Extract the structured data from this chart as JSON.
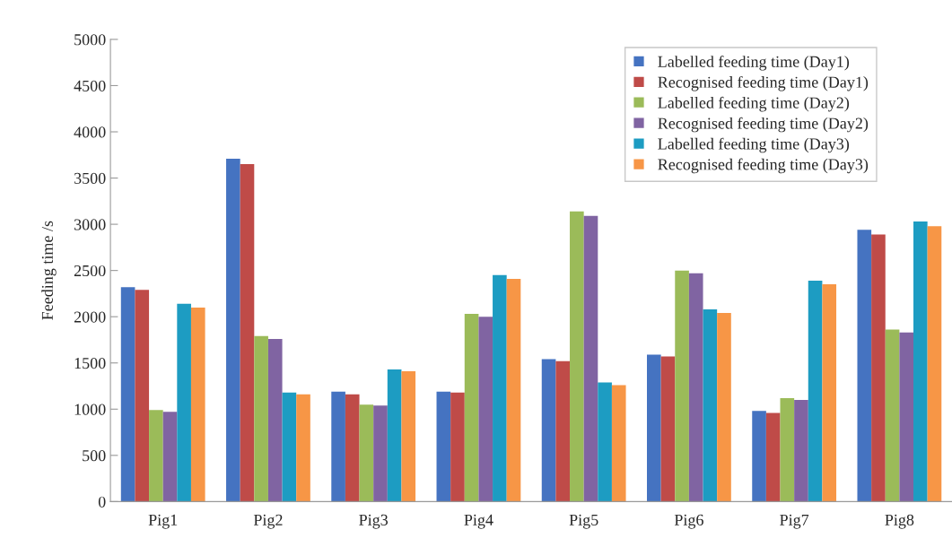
{
  "chart_data": {
    "type": "bar",
    "ylabel": "Feeding time /s",
    "categories": [
      "Pig1",
      "Pig2",
      "Pig3",
      "Pig4",
      "Pig5",
      "Pig6",
      "Pig7",
      "Pig8"
    ],
    "series": [
      {
        "name": "Labelled feeding time (Day1)",
        "color": "#4573c1",
        "values": [
          2320,
          3710,
          1190,
          1190,
          1540,
          1590,
          980,
          2940
        ]
      },
      {
        "name": "Recognised feeding time (Day1)",
        "color": "#bf4b48",
        "values": [
          2290,
          3650,
          1160,
          1180,
          1520,
          1570,
          960,
          2890
        ]
      },
      {
        "name": "Labelled feeding time (Day2)",
        "color": "#9bbb59",
        "values": [
          990,
          1790,
          1050,
          2030,
          3140,
          2500,
          1120,
          1860
        ]
      },
      {
        "name": "Recognised feeding time (Day2)",
        "color": "#8064a2",
        "values": [
          970,
          1760,
          1040,
          2000,
          3090,
          2470,
          1100,
          1830
        ]
      },
      {
        "name": "Labelled feeding time (Day3)",
        "color": "#1d9cc2",
        "values": [
          2140,
          1180,
          1430,
          2450,
          1290,
          2080,
          2390,
          3030
        ]
      },
      {
        "name": "Recognised feeding time (Day3)",
        "color": "#f79646",
        "values": [
          2100,
          1160,
          1410,
          2410,
          1260,
          2040,
          2350,
          2980
        ]
      }
    ],
    "ylim": [
      0,
      5000
    ],
    "yticks": [
      0,
      500,
      1000,
      1500,
      2000,
      2500,
      3000,
      3500,
      4000,
      4500,
      5000
    ],
    "grid": false,
    "legend": "top right"
  }
}
